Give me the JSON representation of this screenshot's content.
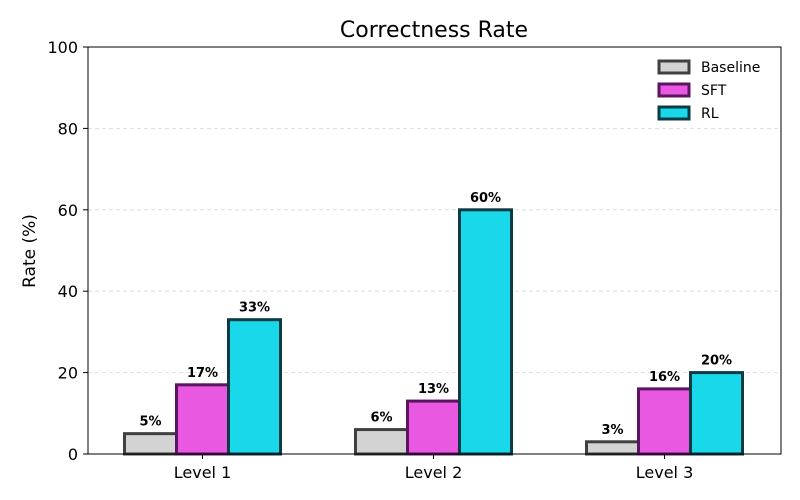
{
  "chart_data": {
    "type": "bar",
    "title": "Correctness Rate",
    "xlabel": "",
    "ylabel": "Rate (%)",
    "ylim": [
      0,
      100
    ],
    "yticks": [
      0,
      20,
      40,
      60,
      80,
      100
    ],
    "categories": [
      "Level 1",
      "Level 2",
      "Level 3"
    ],
    "series": [
      {
        "name": "Baseline",
        "values": [
          5,
          6,
          3
        ],
        "labels": [
          "5%",
          "6%",
          "3%"
        ],
        "color": "#d3d3d3",
        "edge": "#404040"
      },
      {
        "name": "SFT",
        "values": [
          17,
          13,
          16
        ],
        "labels": [
          "17%",
          "13%",
          "16%"
        ],
        "color": "#e858e0",
        "edge": "#5a1460"
      },
      {
        "name": "RL",
        "values": [
          33,
          60,
          20
        ],
        "labels": [
          "33%",
          "60%",
          "20%"
        ],
        "color": "#18d8ea",
        "edge": "#0a3a44"
      }
    ],
    "grid": "horizontal dashed",
    "legend_position": "top-right"
  }
}
